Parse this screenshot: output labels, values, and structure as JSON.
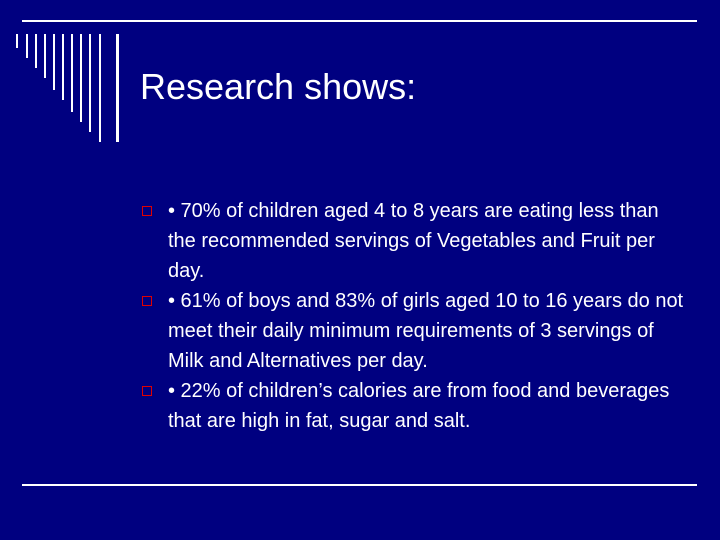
{
  "slide": {
    "title": "Research shows:",
    "bullets": [
      {
        "text": "• 70% of children aged 4 to 8 years are eating less than the recommended servings of Vegetables and Fruit per day."
      },
      {
        "text": "• 61% of boys and 83% of girls aged 10 to 16 years do not meet their daily minimum requirements of 3 servings of Milk and Alternatives per day."
      },
      {
        "text": "• 22% of children’s calories are from food and beverages that are high in fat, sugar and salt."
      }
    ]
  },
  "colors": {
    "background": "#000080",
    "text": "#ffffff",
    "bullet_marker": "#e00000"
  },
  "icons": {
    "bullet_marker": "hollow-square-icon"
  }
}
